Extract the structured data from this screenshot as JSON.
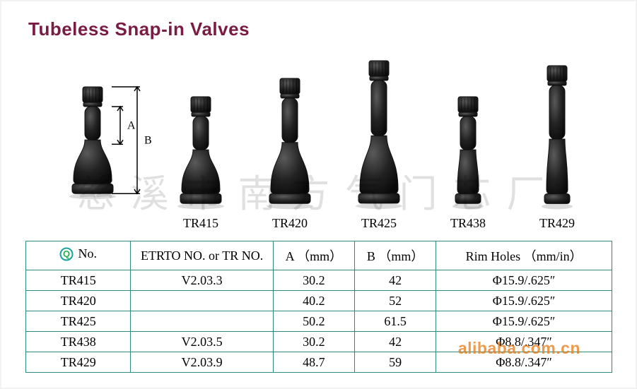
{
  "title": "Tubeless Snap-in Valves",
  "dimLabels": {
    "A": "A",
    "B": "B"
  },
  "valves": [
    {
      "label": "TR415",
      "a": 30.2,
      "b": 42
    },
    {
      "label": "TR420",
      "a": 40.2,
      "b": 52
    },
    {
      "label": "TR425",
      "a": 50.2,
      "b": 61.5
    },
    {
      "label": "TR438",
      "a": 30.2,
      "b": 42
    },
    {
      "label": "TR429",
      "a": 48.7,
      "b": 59
    }
  ],
  "refValve": {
    "a": 30.2,
    "b": 42
  },
  "layout": {
    "refX": 62,
    "refW": 86,
    "startX": 200,
    "gap": 126,
    "cellW": 96,
    "pxPerMm": 2.6,
    "capH": 22,
    "capW": 28,
    "neckW": 22,
    "bulbW": 54,
    "footW": 58,
    "footH": 14,
    "narrowBulbW": 30,
    "narrowFootW": 36
  },
  "colors": {
    "valveFill": "url(#vg)",
    "valveStroke": "#111111",
    "tableBorder": "#2f8b82",
    "title": "#7a1b43",
    "iconRing": "#1aa0a0",
    "iconQ": "#26b04c"
  },
  "tableHead": {
    "no": "No.",
    "etrto": "ETRTO NO. or TR NO.",
    "a": "A （mm）",
    "b": "B （mm）",
    "rim": "Rim Holes （mm/in）"
  },
  "rows": [
    {
      "no": "TR415",
      "etrto": "V2.03.3",
      "a": "30.2",
      "b": "42",
      "rim": "Φ15.9/.625″"
    },
    {
      "no": "TR420",
      "etrto": "",
      "a": "40.2",
      "b": "52",
      "rim": "Φ15.9/.625″"
    },
    {
      "no": "TR425",
      "etrto": "",
      "a": "50.2",
      "b": "61.5",
      "rim": "Φ15.9/.625″"
    },
    {
      "no": "TR438",
      "etrto": "V2.03.5",
      "a": "30.2",
      "b": "42",
      "rim": "Φ8.8/.347″"
    },
    {
      "no": "TR429",
      "etrto": "V2.03.9",
      "a": "48.7",
      "b": "59",
      "rim": "Φ8.8/.347″"
    }
  ],
  "watermark": {
    "cn": "慈溪市南方气门芯厂",
    "ali": "alibaba.com.cn"
  }
}
